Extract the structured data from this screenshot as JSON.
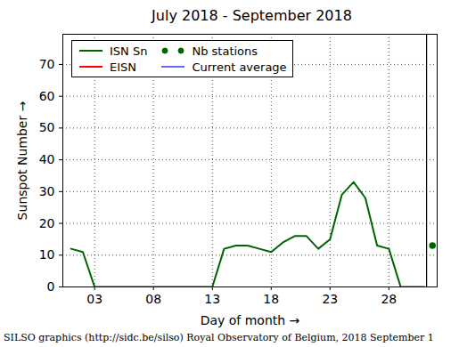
{
  "chart_data": {
    "type": "line",
    "title": "July 2018 - September 2018",
    "x_label": "Day of month",
    "y_label": "Sunspot Number",
    "footer": "SILSO graphics (http://sidc.be/silso) Royal Observatory of Belgium, 2018 September 1",
    "xlim": [
      0.3,
      32.1
    ],
    "ylim": [
      0,
      79.5
    ],
    "xticks": [
      {
        "value": 3,
        "label": "03"
      },
      {
        "value": 8,
        "label": "08"
      },
      {
        "value": 13,
        "label": "13"
      },
      {
        "value": 18,
        "label": "18"
      },
      {
        "value": 23,
        "label": "23"
      },
      {
        "value": 28,
        "label": "28"
      }
    ],
    "yticks": [
      0,
      10,
      20,
      30,
      40,
      50,
      60,
      70
    ],
    "grid": true,
    "legend": "upper left",
    "vertical_line_x": 31.2,
    "series": [
      {
        "name": "ISN Sn",
        "type": "line",
        "color": "#006400",
        "x": [
          1,
          2,
          3,
          4,
          5,
          6,
          7,
          8,
          9,
          10,
          11,
          12,
          13,
          14,
          15,
          16,
          17,
          18,
          19,
          20,
          21,
          22,
          23,
          24,
          25,
          26,
          27,
          28,
          29,
          30,
          31
        ],
        "values": [
          12,
          11,
          0,
          0,
          0,
          0,
          0,
          0,
          0,
          0,
          0,
          0,
          0,
          12,
          13,
          13,
          12,
          11,
          14,
          16,
          16,
          12,
          15,
          29,
          33,
          28,
          13,
          12,
          0,
          0,
          0
        ]
      },
      {
        "name": "EISN",
        "type": "line",
        "color": "#ff0000",
        "x": [],
        "values": []
      },
      {
        "name": "Nb stations",
        "type": "scatter",
        "marker": "circle",
        "color": "#006400",
        "x": [
          31.7
        ],
        "values": [
          13
        ]
      },
      {
        "name": "Current average",
        "type": "line",
        "color": "#6666ff",
        "x": [],
        "values": []
      }
    ]
  }
}
